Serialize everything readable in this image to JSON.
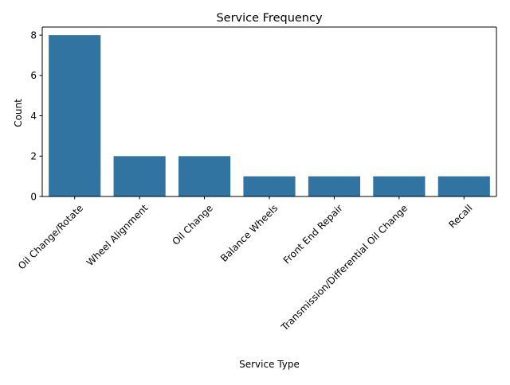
{
  "chart_data": {
    "type": "bar",
    "title": "Service Frequency",
    "xlabel": "Service Type",
    "ylabel": "Count",
    "categories": [
      "Oil Change/Rotate",
      "Wheel Alignment",
      "Oil Change",
      "Balance Wheels",
      "Front End Repair",
      "Transmission/Differential Oil Change",
      "Recall"
    ],
    "values": [
      8,
      2,
      2,
      1,
      1,
      1,
      1
    ],
    "ylim": [
      0,
      8.4
    ],
    "yticks": [
      0,
      2,
      4,
      6,
      8
    ],
    "grid": false,
    "bar_color": "#3274a1",
    "xtick_rotation_deg": 45
  }
}
